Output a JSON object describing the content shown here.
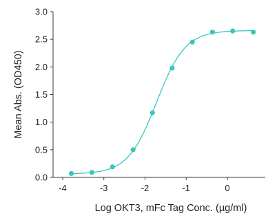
{
  "chart_data": {
    "type": "scatter",
    "title": "",
    "xlabel": "Log OKT3, mFc Tag Conc. (µg/ml)",
    "ylabel": "Mean Abs. (OD450)",
    "xlim": [
      -4,
      1
    ],
    "ylim": [
      0,
      3.0
    ],
    "x_ticks": [
      -4,
      -3,
      -2,
      -1,
      0
    ],
    "x_tick_labels": [
      "-4",
      "-3",
      "-2",
      "-1",
      "0"
    ],
    "y_ticks": [
      0,
      0.5,
      1.0,
      1.5,
      2.0,
      2.5,
      3.0
    ],
    "y_tick_labels": [
      "0.0",
      "0.5",
      "1.0",
      "1.5",
      "2.0",
      "2.5",
      "3.0"
    ],
    "grid": false,
    "color": "#3cc6bc",
    "series": [
      {
        "points": [
          {
            "x": -3.79,
            "y": 0.07
          },
          {
            "x": -3.29,
            "y": 0.09
          },
          {
            "x": -2.79,
            "y": 0.19
          },
          {
            "x": -2.29,
            "y": 0.5
          },
          {
            "x": -1.82,
            "y": 1.17
          },
          {
            "x": -1.34,
            "y": 1.98
          },
          {
            "x": -0.85,
            "y": 2.45
          },
          {
            "x": -0.36,
            "y": 2.63
          },
          {
            "x": 0.13,
            "y": 2.65
          },
          {
            "x": 0.63,
            "y": 2.63
          }
        ],
        "fit": {
          "model": "4PL",
          "bottom": 0.06,
          "top": 2.66,
          "logEC50": -1.72,
          "hill": 1.25,
          "x_range": [
            -3.8,
            0.65
          ]
        }
      }
    ]
  }
}
